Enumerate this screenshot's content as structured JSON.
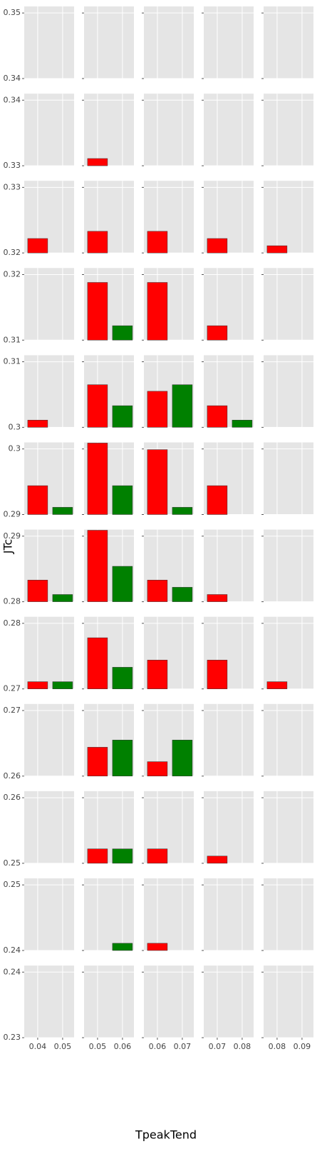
{
  "chart_data": {
    "type": "bar",
    "x_label": "TpeakTend",
    "y_label": "JTc",
    "colors": [
      "red",
      "green"
    ],
    "columns": [
      {
        "xlim": [
          0.0346,
          0.0546
        ],
        "xticks": [
          0.04,
          0.05
        ]
      },
      {
        "xlim": [
          0.0446,
          0.0646
        ],
        "xticks": [
          0.05,
          0.06
        ]
      },
      {
        "xlim": [
          0.0546,
          0.0746
        ],
        "xticks": [
          0.06,
          0.07
        ]
      },
      {
        "xlim": [
          0.0646,
          0.0846
        ],
        "xticks": [
          0.07,
          0.08
        ]
      },
      {
        "xlim": [
          0.0746,
          0.0946
        ],
        "xticks": [
          0.08,
          0.09
        ]
      }
    ],
    "rows": [
      {
        "ylim": [
          0.34,
          0.351
        ],
        "yticks": [
          0.34,
          0.35
        ],
        "values": [
          [
            null,
            null
          ],
          [
            null,
            null
          ],
          [
            null,
            null
          ],
          [
            null,
            null
          ],
          [
            null,
            null
          ]
        ]
      },
      {
        "ylim": [
          0.33,
          0.341
        ],
        "yticks": [
          0.33,
          0.34
        ],
        "values": [
          [
            null,
            null
          ],
          [
            0.3311,
            null
          ],
          [
            null,
            null
          ],
          [
            null,
            null
          ],
          [
            null,
            null
          ]
        ]
      },
      {
        "ylim": [
          0.32,
          0.331
        ],
        "yticks": [
          0.32,
          0.33
        ],
        "values": [
          [
            0.3222,
            null
          ],
          [
            0.3233,
            null
          ],
          [
            0.3233,
            null
          ],
          [
            0.3222,
            null
          ],
          [
            0.3211,
            null
          ]
        ]
      },
      {
        "ylim": [
          0.31,
          0.321
        ],
        "yticks": [
          0.31,
          0.32
        ],
        "values": [
          [
            null,
            null
          ],
          [
            0.3188,
            0.3122
          ],
          [
            0.3188,
            null
          ],
          [
            0.3122,
            null
          ],
          [
            null,
            null
          ]
        ]
      },
      {
        "ylim": [
          0.3,
          0.311
        ],
        "yticks": [
          0.3,
          0.31
        ],
        "values": [
          [
            0.3011,
            null
          ],
          [
            0.3065,
            0.3033
          ],
          [
            0.3055,
            0.3065
          ],
          [
            0.3033,
            0.3011
          ],
          [
            null,
            null
          ]
        ]
      },
      {
        "ylim": [
          0.29,
          0.301
        ],
        "yticks": [
          0.29,
          0.3
        ],
        "values": [
          [
            0.2944,
            0.2911
          ],
          [
            0.3009,
            0.2944
          ],
          [
            0.2999,
            0.2911
          ],
          [
            0.2944,
            null
          ],
          [
            null,
            null
          ]
        ]
      },
      {
        "ylim": [
          0.28,
          0.291
        ],
        "yticks": [
          0.28,
          0.29
        ],
        "values": [
          [
            0.2833,
            0.2811
          ],
          [
            0.2909,
            0.2854
          ],
          [
            0.2833,
            0.2822
          ],
          [
            0.2811,
            null
          ],
          [
            null,
            null
          ]
        ]
      },
      {
        "ylim": [
          0.27,
          0.281
        ],
        "yticks": [
          0.27,
          0.28
        ],
        "values": [
          [
            0.2711,
            0.2711
          ],
          [
            0.2778,
            0.2733
          ],
          [
            0.2744,
            null
          ],
          [
            0.2744,
            null
          ],
          [
            0.2711,
            null
          ]
        ]
      },
      {
        "ylim": [
          0.26,
          0.271
        ],
        "yticks": [
          0.26,
          0.27
        ],
        "values": [
          [
            null,
            null
          ],
          [
            0.2644,
            0.2655
          ],
          [
            0.2622,
            0.2655
          ],
          [
            null,
            null
          ],
          [
            null,
            null
          ]
        ]
      },
      {
        "ylim": [
          0.25,
          0.261
        ],
        "yticks": [
          0.25,
          0.26
        ],
        "values": [
          [
            null,
            null
          ],
          [
            0.2522,
            0.2522
          ],
          [
            0.2522,
            null
          ],
          [
            0.2511,
            null
          ],
          [
            null,
            null
          ]
        ]
      },
      {
        "ylim": [
          0.24,
          0.251
        ],
        "yticks": [
          0.24,
          0.25
        ],
        "values": [
          [
            null,
            null
          ],
          [
            null,
            0.2411
          ],
          [
            0.2411,
            null
          ],
          [
            null,
            null
          ],
          [
            null,
            null
          ]
        ]
      },
      {
        "ylim": [
          0.23,
          0.241
        ],
        "yticks": [
          0.23,
          0.24
        ],
        "values": [
          [
            null,
            null
          ],
          [
            null,
            null
          ],
          [
            null,
            null
          ],
          [
            null,
            null
          ],
          [
            null,
            null
          ]
        ]
      }
    ]
  }
}
